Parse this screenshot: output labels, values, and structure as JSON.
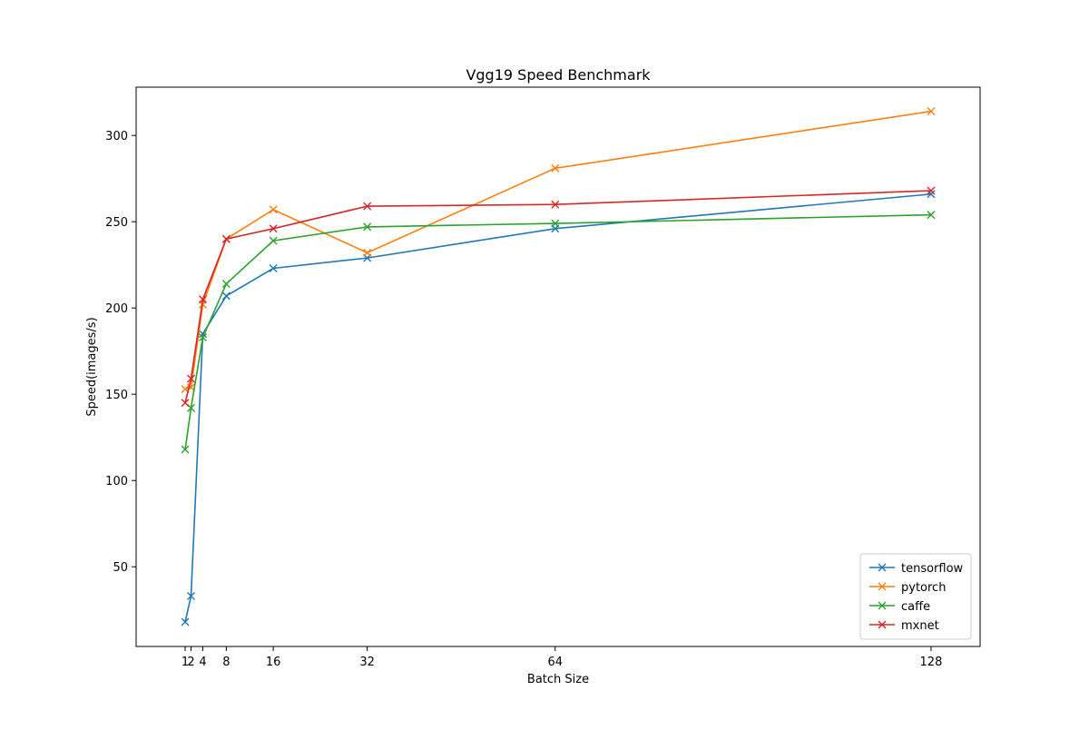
{
  "chart_data": {
    "type": "line",
    "title": "Vgg19 Speed Benchmark",
    "xlabel": "Batch Size",
    "ylabel": "Speed(images/s)",
    "x": [
      1,
      2,
      4,
      8,
      16,
      32,
      64,
      128
    ],
    "xticks": [
      1,
      2,
      4,
      8,
      16,
      32,
      64,
      128
    ],
    "xtick_labels": [
      "1",
      "2",
      "4",
      "8",
      "16",
      "32",
      "64",
      "128"
    ],
    "yticks": [
      50,
      100,
      150,
      200,
      250,
      300
    ],
    "xlim": [
      -7.35,
      136.35
    ],
    "ylim": [
      3.8,
      328.0
    ],
    "grid": false,
    "marker": "x",
    "legend_position": "lower-right",
    "series": [
      {
        "name": "tensorflow",
        "color": "#1f77b4",
        "values": [
          18,
          33,
          185,
          207,
          223,
          229,
          246,
          266
        ]
      },
      {
        "name": "pytorch",
        "color": "#ff7f0e",
        "values": [
          153,
          154,
          202,
          240,
          257,
          232,
          281,
          314
        ]
      },
      {
        "name": "caffe",
        "color": "#2ca02c",
        "values": [
          118,
          142,
          183,
          214,
          239,
          247,
          249,
          254
        ]
      },
      {
        "name": "mxnet",
        "color": "#d62728",
        "values": [
          145,
          159,
          205,
          240,
          246,
          259,
          260,
          268
        ]
      }
    ]
  }
}
